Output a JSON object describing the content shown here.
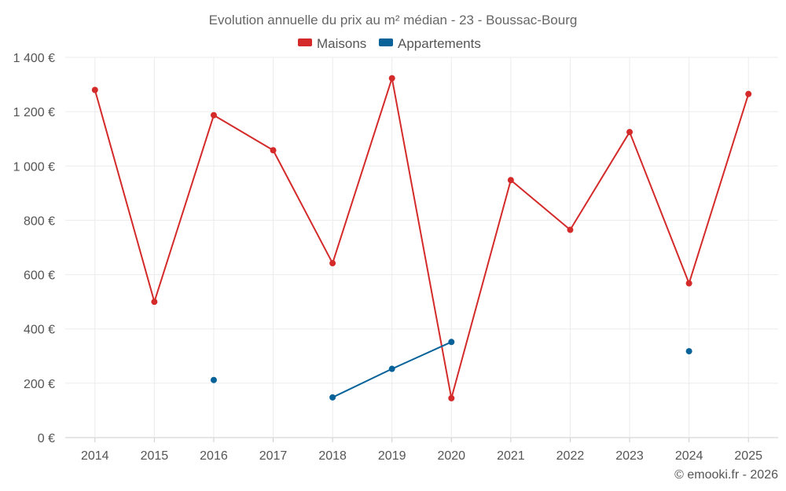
{
  "chart_data": {
    "type": "line",
    "title": "Evolution annuelle du prix au m² médian - 23 - Boussac-Bourg",
    "categories": [
      "2014",
      "2015",
      "2016",
      "2017",
      "2018",
      "2019",
      "2020",
      "2021",
      "2022",
      "2023",
      "2024",
      "2025"
    ],
    "y_tick_labels": [
      "0 €",
      "200 €",
      "400 €",
      "600 €",
      "800 €",
      "1 000 €",
      "1 200 €",
      "1 400 €"
    ],
    "y_ticks": [
      0,
      200,
      400,
      600,
      800,
      1000,
      1200,
      1400
    ],
    "ylim": [
      0,
      1400
    ],
    "xlabel": "",
    "ylabel": "",
    "grid": true,
    "legend_position": "top-center",
    "series": [
      {
        "name": "Maisons",
        "color": "#d42a2a",
        "values": [
          1280,
          500,
          1187,
          1058,
          642,
          1323,
          145,
          948,
          765,
          1125,
          568,
          1265
        ]
      },
      {
        "name": "Appartements",
        "color": "#08629a",
        "values": [
          null,
          null,
          212,
          null,
          148,
          253,
          352,
          null,
          null,
          null,
          318,
          null
        ]
      }
    ]
  },
  "credit": "© emooki.fr - 2026"
}
